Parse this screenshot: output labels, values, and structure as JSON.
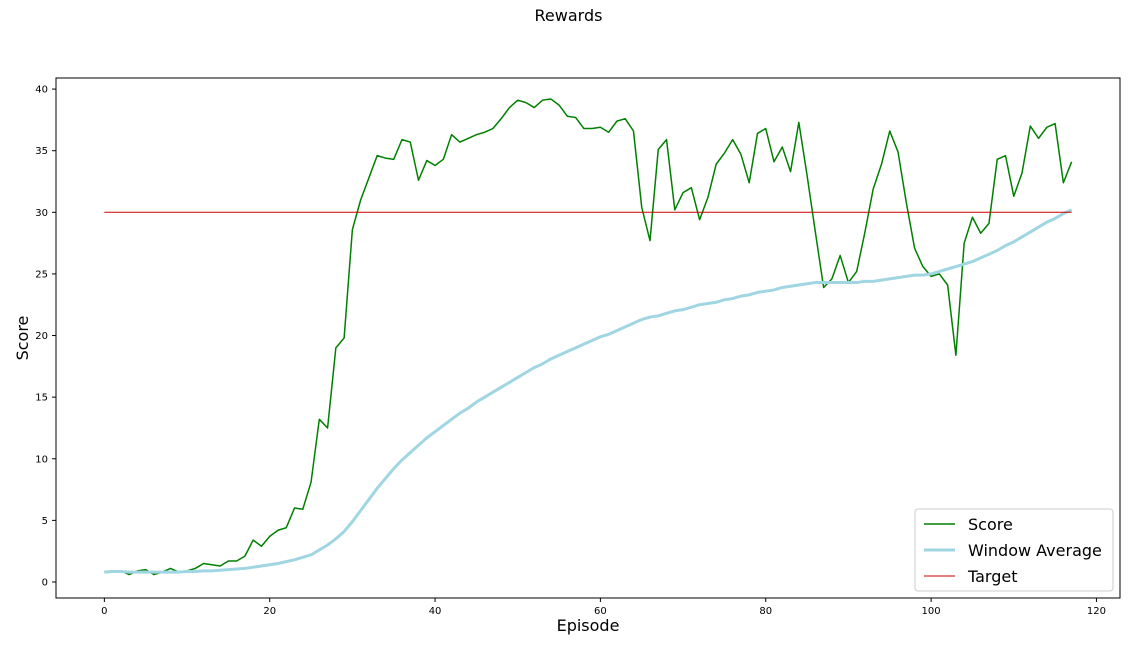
{
  "figure": {
    "suptitle": "Rewards"
  },
  "chart_data": {
    "type": "line",
    "title": "Rewards",
    "xlabel": "Episode",
    "ylabel": "Score",
    "xlim": [
      -5.85,
      122.85
    ],
    "ylim": [
      -1.3,
      40.9
    ],
    "xticks": [
      0,
      20,
      40,
      60,
      80,
      100,
      120
    ],
    "yticks": [
      0,
      5,
      10,
      15,
      20,
      25,
      30,
      35,
      40
    ],
    "grid": false,
    "legend": "lower-right",
    "series": [
      {
        "name": "Score",
        "color": "#008000",
        "line_width": 1.5,
        "x": [
          0,
          1,
          2,
          3,
          4,
          5,
          6,
          7,
          8,
          9,
          10,
          11,
          12,
          13,
          14,
          15,
          16,
          17,
          18,
          19,
          20,
          21,
          22,
          23,
          24,
          25,
          26,
          27,
          28,
          29,
          30,
          31,
          32,
          33,
          34,
          35,
          36,
          37,
          38,
          39,
          40,
          41,
          42,
          43,
          44,
          45,
          46,
          47,
          48,
          49,
          50,
          51,
          52,
          53,
          54,
          55,
          56,
          57,
          58,
          59,
          60,
          61,
          62,
          63,
          64,
          65,
          66,
          67,
          68,
          69,
          70,
          71,
          72,
          73,
          74,
          75,
          76,
          77,
          78,
          79,
          80,
          81,
          82,
          83,
          84,
          85,
          86,
          87,
          88,
          89,
          90,
          91,
          92,
          93,
          94,
          95,
          96,
          97,
          98,
          99,
          100,
          101,
          102,
          103,
          104,
          105,
          106,
          107,
          108,
          109,
          110,
          111,
          112,
          113,
          114,
          115,
          116,
          117
        ],
        "y": [
          0.8,
          0.9,
          0.9,
          0.6,
          0.9,
          1.0,
          0.6,
          0.8,
          1.1,
          0.8,
          0.9,
          1.1,
          1.5,
          1.4,
          1.3,
          1.7,
          1.7,
          2.1,
          3.4,
          2.9,
          3.7,
          4.2,
          4.4,
          6.0,
          5.9,
          8.1,
          13.2,
          12.5,
          19.0,
          19.8,
          28.6,
          31.0,
          32.8,
          34.6,
          34.4,
          34.3,
          35.9,
          35.7,
          32.6,
          34.2,
          33.8,
          34.3,
          36.3,
          35.7,
          36.0,
          36.3,
          36.5,
          36.8,
          37.6,
          38.5,
          39.1,
          38.9,
          38.5,
          39.1,
          39.2,
          38.7,
          37.8,
          37.7,
          36.8,
          36.8,
          36.9,
          36.5,
          37.4,
          37.6,
          36.6,
          30.4,
          27.7,
          35.1,
          35.9,
          30.2,
          31.6,
          32.0,
          29.4,
          31.2,
          33.9,
          34.8,
          35.9,
          34.7,
          32.4,
          36.4,
          36.8,
          34.1,
          35.3,
          33.3,
          37.3,
          33.0,
          28.4,
          23.9,
          24.6,
          26.5,
          24.3,
          25.2,
          28.4,
          31.9,
          33.9,
          36.6,
          34.9,
          30.8,
          27.1,
          25.6,
          24.8,
          25.0,
          24.1,
          18.4,
          27.5,
          29.6,
          28.3,
          29.1,
          34.3,
          34.6,
          31.3,
          33.2,
          37.0,
          36.0,
          36.9,
          37.2,
          32.4,
          34.1
        ]
      },
      {
        "name": "Window Average",
        "color": "#a0d5e2",
        "line_width": 3,
        "x": [
          0,
          1,
          2,
          3,
          4,
          5,
          6,
          7,
          8,
          9,
          10,
          11,
          12,
          13,
          14,
          15,
          16,
          17,
          18,
          19,
          20,
          21,
          22,
          23,
          24,
          25,
          26,
          27,
          28,
          29,
          30,
          31,
          32,
          33,
          34,
          35,
          36,
          37,
          38,
          39,
          40,
          41,
          42,
          43,
          44,
          45,
          46,
          47,
          48,
          49,
          50,
          51,
          52,
          53,
          54,
          55,
          56,
          57,
          58,
          59,
          60,
          61,
          62,
          63,
          64,
          65,
          66,
          67,
          68,
          69,
          70,
          71,
          72,
          73,
          74,
          75,
          76,
          77,
          78,
          79,
          80,
          81,
          82,
          83,
          84,
          85,
          86,
          87,
          88,
          89,
          90,
          91,
          92,
          93,
          94,
          95,
          96,
          97,
          98,
          99,
          100,
          101,
          102,
          103,
          104,
          105,
          106,
          107,
          108,
          109,
          110,
          111,
          112,
          113,
          114,
          115,
          116,
          117
        ],
        "y": [
          0.8,
          0.85,
          0.85,
          0.8,
          0.8,
          0.8,
          0.8,
          0.8,
          0.8,
          0.8,
          0.85,
          0.85,
          0.9,
          0.9,
          0.95,
          1.0,
          1.05,
          1.1,
          1.2,
          1.3,
          1.4,
          1.5,
          1.65,
          1.8,
          2.0,
          2.2,
          2.6,
          3.0,
          3.5,
          4.1,
          4.9,
          5.8,
          6.7,
          7.6,
          8.4,
          9.2,
          9.9,
          10.5,
          11.1,
          11.7,
          12.2,
          12.7,
          13.2,
          13.7,
          14.1,
          14.6,
          15.0,
          15.4,
          15.8,
          16.2,
          16.6,
          17.0,
          17.4,
          17.7,
          18.1,
          18.4,
          18.7,
          19.0,
          19.3,
          19.6,
          19.9,
          20.1,
          20.4,
          20.7,
          21.0,
          21.3,
          21.5,
          21.6,
          21.8,
          22.0,
          22.1,
          22.3,
          22.5,
          22.6,
          22.7,
          22.9,
          23.0,
          23.2,
          23.3,
          23.5,
          23.6,
          23.7,
          23.9,
          24.0,
          24.1,
          24.2,
          24.3,
          24.3,
          24.3,
          24.3,
          24.3,
          24.3,
          24.4,
          24.4,
          24.5,
          24.6,
          24.7,
          24.8,
          24.9,
          24.9,
          25.0,
          25.2,
          25.4,
          25.6,
          25.8,
          26.0,
          26.3,
          26.6,
          26.9,
          27.3,
          27.6,
          28.0,
          28.4,
          28.8,
          29.2,
          29.5,
          29.9,
          30.2
        ]
      },
      {
        "name": "Target",
        "color": "#cc0000",
        "line_width": 1,
        "x": [
          0,
          117
        ],
        "y": [
          30,
          30
        ]
      }
    ]
  }
}
